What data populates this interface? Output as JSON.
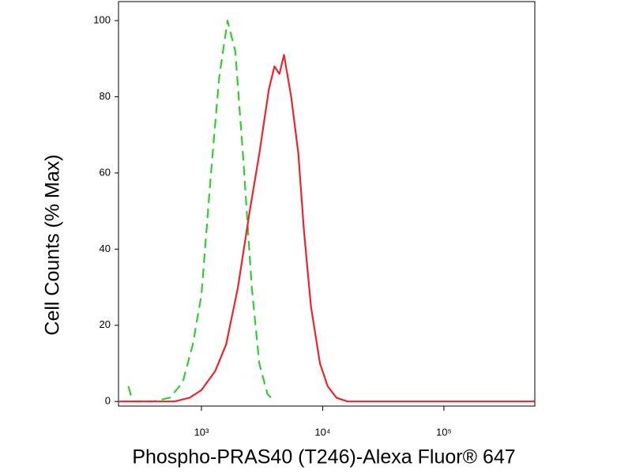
{
  "chart_data": {
    "type": "line",
    "xlabel": "Phospho-PRAS40 (T246)-Alexa Fluor® 647",
    "ylabel": "Cell Counts (% Max)",
    "xscale": "log",
    "xlim": [
      207,
      562000
    ],
    "ylim": [
      -1.2,
      105
    ],
    "xticks": [
      {
        "value": 1000,
        "label": "10³"
      },
      {
        "value": 10000,
        "label": "10⁴"
      },
      {
        "value": 100000,
        "label": "10⁵"
      }
    ],
    "yticks": [
      0,
      20,
      40,
      60,
      80,
      100
    ],
    "series": [
      {
        "color": "#33cc33",
        "dashed": true,
        "x": [
          250,
          270,
          400,
          550,
          700,
          850,
          1000,
          1200,
          1400,
          1640,
          1900,
          2200,
          2600,
          3000,
          3500,
          4000
        ],
        "values": [
          4,
          0,
          0,
          1,
          5,
          15,
          28,
          60,
          85,
          100,
          92,
          65,
          30,
          10,
          2,
          0
        ]
      },
      {
        "color": "#e8262b",
        "dashed": false,
        "x": [
          210,
          600,
          800,
          1000,
          1300,
          1600,
          2000,
          2500,
          3000,
          3600,
          4000,
          4400,
          4800,
          5500,
          6300,
          7000,
          8000,
          9500,
          11000,
          13000,
          16000,
          100000,
          560000
        ],
        "values": [
          0,
          0,
          1,
          3,
          8,
          15,
          30,
          50,
          65,
          82,
          88,
          86,
          91,
          80,
          65,
          45,
          25,
          10,
          4,
          1,
          0,
          0,
          0
        ]
      }
    ]
  }
}
